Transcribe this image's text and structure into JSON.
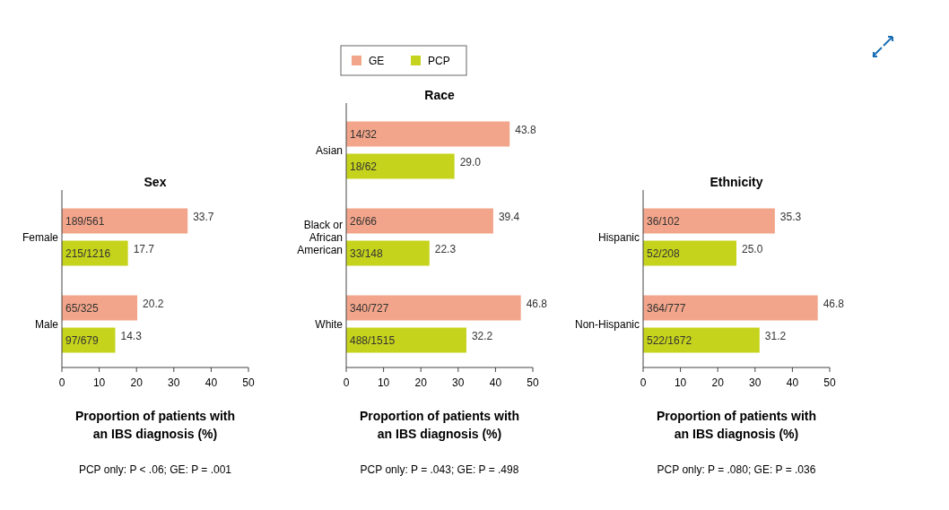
{
  "chart_data": [
    {
      "type": "bar",
      "orientation": "horizontal",
      "title": "Sex",
      "categories": [
        "Female",
        "Male"
      ],
      "xlim": [
        0,
        50
      ],
      "xticks": [
        0,
        10,
        20,
        30,
        40,
        50
      ],
      "xlabel": "Proportion of patients with\nan IBS diagnosis (%)",
      "annotations": [
        {
          "text": "189/561",
          "y": "Female"
        },
        {
          "text": "215/1216",
          "y": "Female"
        },
        {
          "text": "65/325",
          "y": "Male"
        },
        {
          "text": "97/679",
          "y": "Male"
        },
        "PCP only: P < .06; GE: P = .001"
      ],
      "series": [
        {
          "color": "#f2a58a",
          "values": [
            33.7,
            20.2
          ],
          "value_labels": [
            "33.7",
            "20.2"
          ]
        },
        {
          "color": "#c6d31c",
          "values": [
            17.7,
            14.3
          ],
          "value_labels": [
            "17.7",
            "14.3"
          ]
        }
      ]
    },
    {
      "type": "bar",
      "orientation": "horizontal",
      "title": "Race",
      "categories": [
        "Asian",
        "Black or African American",
        "White"
      ],
      "xlim": [
        0,
        50
      ],
      "xticks": [
        0,
        10,
        20,
        30,
        40,
        50
      ],
      "xlabel": "Proportion of patients with\nan IBS diagnosis (%)",
      "legend": "top",
      "annotations": [
        {
          "text": "14/32",
          "y": "Asian"
        },
        {
          "text": "18/62",
          "y": "Asian"
        },
        {
          "text": "26/66",
          "y": "Black or African American"
        },
        {
          "text": "33/148",
          "y": "Black or African American"
        },
        {
          "text": "340/727",
          "y": "White"
        },
        {
          "text": "488/1515",
          "y": "White"
        },
        "PCP only: P = .043; GE: P = .498"
      ],
      "series": [
        {
          "name": "GE",
          "color": "#f2a58a",
          "values": [
            43.8,
            39.4,
            46.8
          ],
          "value_labels": [
            "43.8",
            "39.4",
            "46.8"
          ]
        },
        {
          "name": "PCP",
          "color": "#c6d31c",
          "values": [
            29.0,
            22.3,
            32.2
          ],
          "value_labels": [
            "29.0",
            "22.3",
            "32.2"
          ]
        }
      ]
    },
    {
      "type": "bar",
      "orientation": "horizontal",
      "title": "Ethnicity",
      "categories": [
        "Hispanic",
        "Non-Hispanic"
      ],
      "xlim": [
        0,
        50
      ],
      "xticks": [
        0,
        10,
        20,
        30,
        40,
        50
      ],
      "xlabel": "Proportion of patients with\nan IBS diagnosis (%)",
      "annotations": [
        {
          "text": "36/102",
          "y": "Hispanic"
        },
        {
          "text": "52/208",
          "y": "Hispanic"
        },
        {
          "text": "364/777",
          "y": "Non-Hispanic"
        },
        {
          "text": "522/1672",
          "y": "Non-Hispanic"
        },
        "PCP only: P = .080; GE: P = .036"
      ],
      "series": [
        {
          "color": "#f2a58a",
          "values": [
            35.3,
            46.8
          ],
          "value_labels": [
            "35.3",
            "46.8"
          ]
        },
        {
          "color": "#c6d31c",
          "values": [
            25.0,
            31.2
          ],
          "value_labels": [
            "25.0",
            "31.2"
          ]
        }
      ]
    }
  ]
}
